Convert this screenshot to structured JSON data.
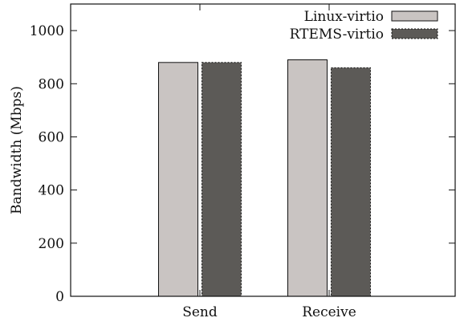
{
  "chart_data": {
    "type": "bar",
    "title": "",
    "xlabel": "",
    "ylabel": "Bandwidth (Mbps)",
    "ylim": [
      0,
      1100
    ],
    "yticks": [
      0,
      200,
      400,
      600,
      800,
      1000
    ],
    "categories": [
      "Send",
      "Receive"
    ],
    "series": [
      {
        "name": "Linux-virtio",
        "values": [
          880,
          890
        ],
        "color": "#c9c4c2"
      },
      {
        "name": "RTEMS-virtio",
        "values": [
          880,
          860
        ],
        "color": "#5c5a57"
      }
    ],
    "legend": "top-right",
    "grid": false
  }
}
